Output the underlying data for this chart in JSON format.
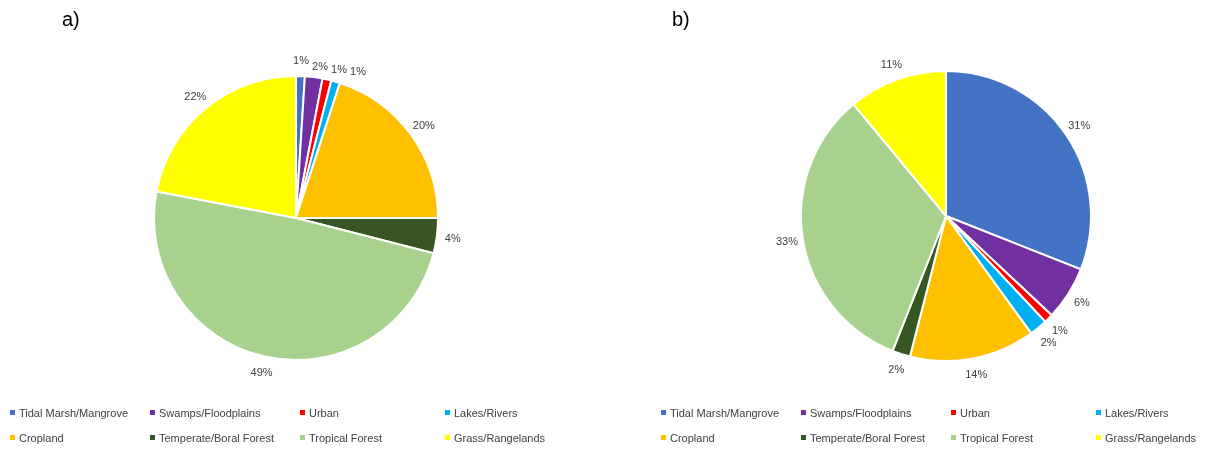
{
  "chart_data": [
    {
      "type": "pie",
      "title": "a)",
      "categories": [
        "Tidal Marsh/Mangrove",
        "Swamps/Floodplains",
        "Urban",
        "Lakes/Rivers",
        "Cropland",
        "Temperate/Boral Forest",
        "Tropical Forest",
        "Grass/Rangelands"
      ],
      "values": [
        1,
        2,
        1,
        1,
        20,
        4,
        49,
        22
      ],
      "value_labels": [
        "1%",
        "2%",
        "1%",
        "1%",
        "20%",
        "4%",
        "49%",
        "22%"
      ],
      "colors": [
        "#4472c4",
        "#7030a0",
        "#ff0000",
        "#00b0f0",
        "#ffc000",
        "#375623",
        "#a9d18e",
        "#ffff00"
      ],
      "legend": "bottom"
    },
    {
      "type": "pie",
      "title": "b)",
      "categories": [
        "Tidal Marsh/Mangrove",
        "Swamps/Floodplains",
        "Urban",
        "Lakes/Rivers",
        "Cropland",
        "Temperate/Boral Forest",
        "Tropical Forest",
        "Grass/Rangelands"
      ],
      "values": [
        31,
        6,
        1,
        2,
        14,
        2,
        33,
        11
      ],
      "value_labels": [
        "31%",
        "6%",
        "1%",
        "2%",
        "14%",
        "2%",
        "33%",
        "11%"
      ],
      "colors": [
        "#4472c4",
        "#7030a0",
        "#ff0000",
        "#00b0f0",
        "#ffc000",
        "#375623",
        "#a9d18e",
        "#ffff00"
      ],
      "legend": "bottom"
    }
  ]
}
